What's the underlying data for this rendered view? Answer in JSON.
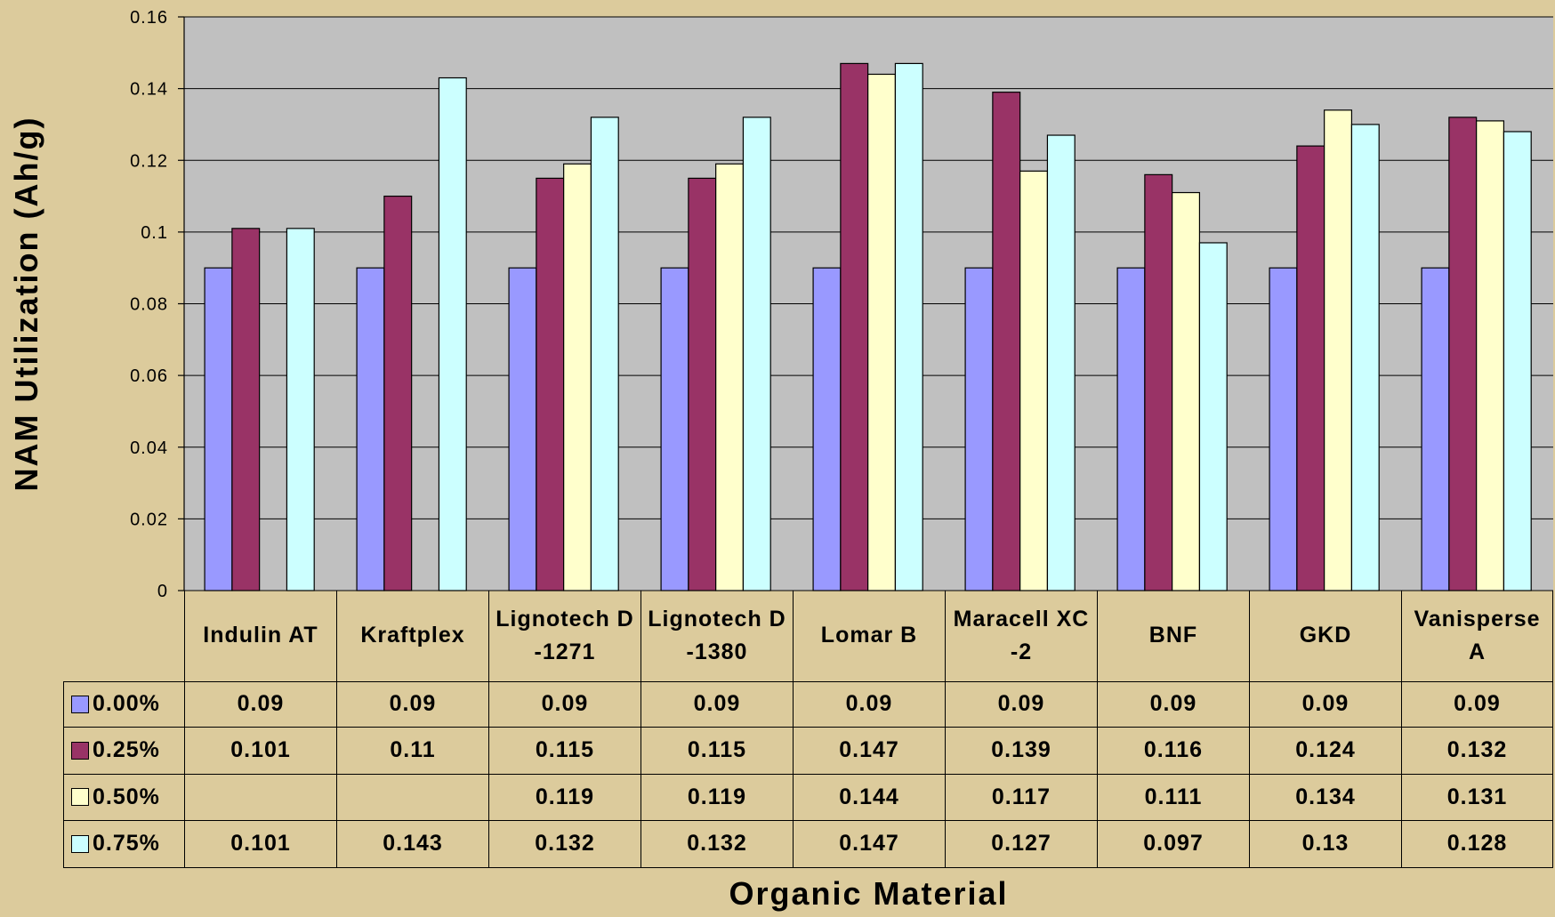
{
  "chart_data": {
    "type": "bar",
    "ylabel": "NAM Utilization (Ah/g)",
    "xlabel": "Organic Material",
    "categories": [
      "Indulin AT",
      "Kraftplex",
      "Lignotech D-1271",
      "Lignotech D-1380",
      "Lomar B",
      "Maracell XC-2",
      "BNF",
      "GKD",
      "Vanisperse A"
    ],
    "series": [
      {
        "name": "0.00%",
        "color": "#9999ff",
        "values": [
          0.09,
          0.09,
          0.09,
          0.09,
          0.09,
          0.09,
          0.09,
          0.09,
          0.09
        ]
      },
      {
        "name": "0.25%",
        "color": "#993366",
        "values": [
          0.101,
          0.11,
          0.115,
          0.115,
          0.147,
          0.139,
          0.116,
          0.124,
          0.132
        ]
      },
      {
        "name": "0.50%",
        "color": "#ffffcc",
        "values": [
          null,
          null,
          0.119,
          0.119,
          0.144,
          0.117,
          0.111,
          0.134,
          0.131
        ]
      },
      {
        "name": "0.75%",
        "color": "#ccffff",
        "values": [
          0.101,
          0.143,
          0.132,
          0.132,
          0.147,
          0.127,
          0.097,
          0.13,
          0.128
        ]
      }
    ],
    "ylim": [
      0,
      0.16
    ],
    "yticks": [
      0,
      0.02,
      0.04,
      0.06,
      0.08,
      0.1,
      0.12,
      0.14,
      0.16
    ],
    "grid": true,
    "data_table": true
  }
}
